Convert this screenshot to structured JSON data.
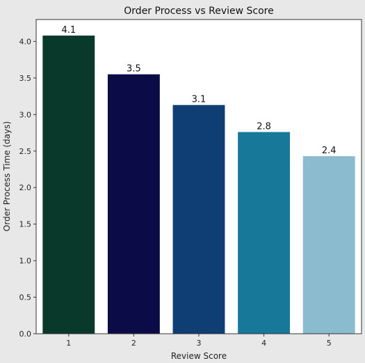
{
  "chart_data": {
    "type": "bar",
    "title": "Order Process vs Review Score",
    "xlabel": "Review Score",
    "ylabel": "Order Process Time (days)",
    "categories": [
      "1",
      "2",
      "3",
      "4",
      "5"
    ],
    "values": [
      4.08,
      3.55,
      3.13,
      2.76,
      2.43
    ],
    "data_labels": [
      "4.1",
      "3.5",
      "3.1",
      "2.8",
      "2.4"
    ],
    "colors": [
      "#08392a",
      "#0b0b47",
      "#0f3e74",
      "#17789a",
      "#8abbcf"
    ],
    "ylim": [
      0,
      4.3
    ],
    "yticks": [
      "0.0",
      "0.5",
      "1.0",
      "1.5",
      "2.0",
      "2.5",
      "3.0",
      "3.5",
      "4.0"
    ],
    "grid": false,
    "legend": "none"
  }
}
